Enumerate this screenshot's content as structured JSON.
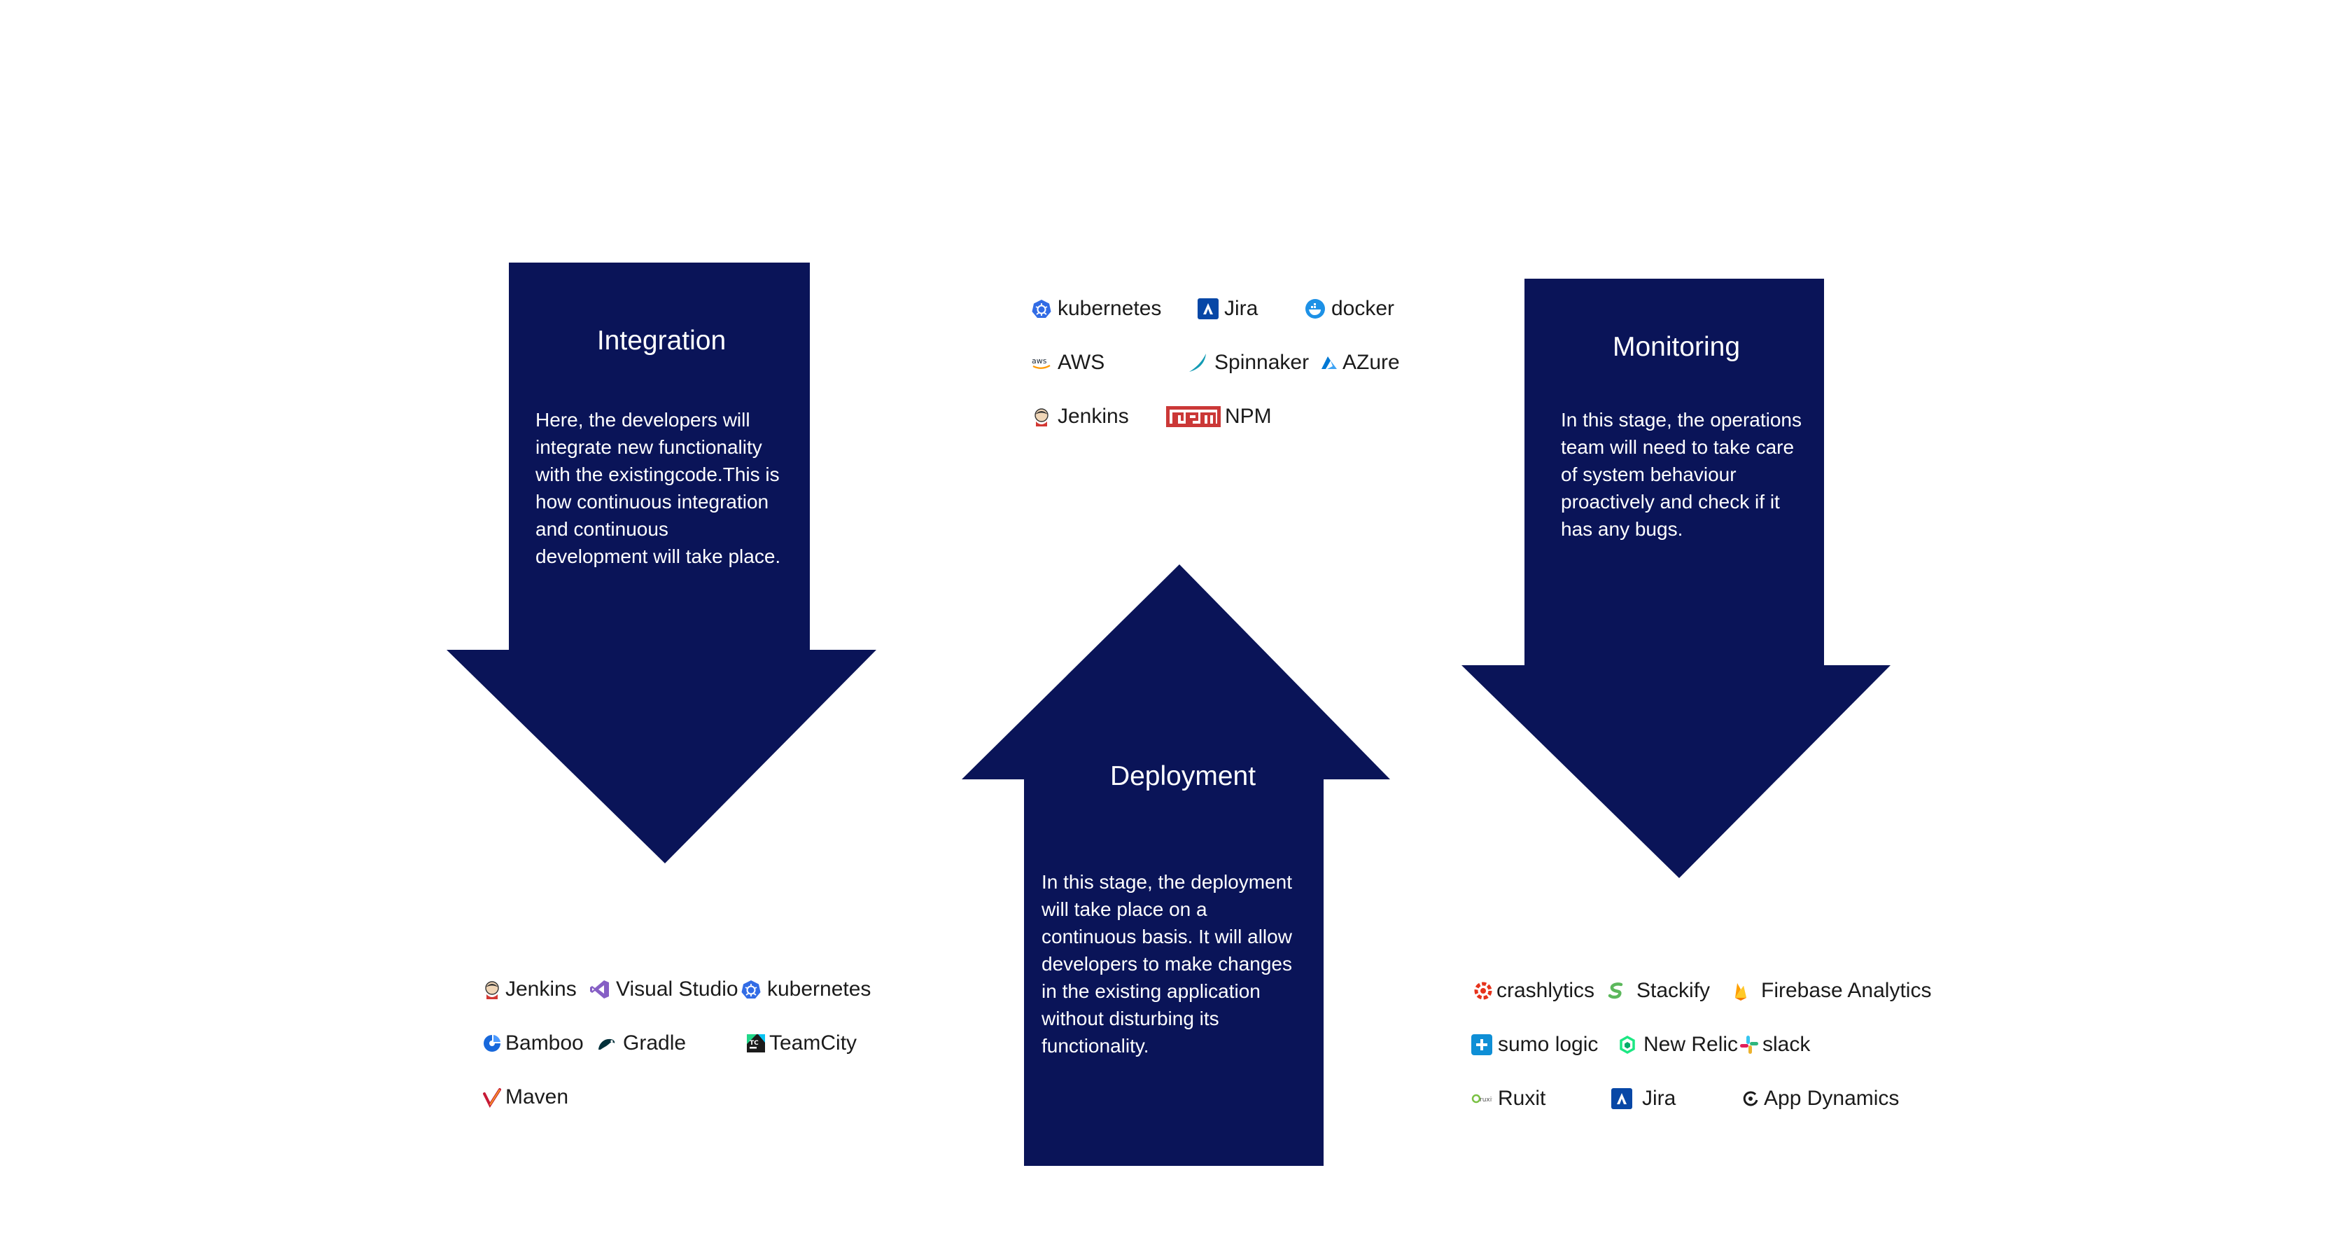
{
  "stages": {
    "integration": {
      "title": "Integration",
      "description": [
        "Here, the developers will",
        "integrate new functionality",
        "with the existingcode.This is",
        "how continuous integration",
        "and continuous",
        "development will take place."
      ],
      "tools": [
        {
          "label": "Jenkins",
          "icon": "jenkins-icon"
        },
        {
          "label": "Visual Studio",
          "icon": "visual-studio-icon"
        },
        {
          "label": "kubernetes",
          "icon": "kubernetes-icon"
        },
        {
          "label": "Bamboo",
          "icon": "bamboo-icon"
        },
        {
          "label": "Gradle",
          "icon": "gradle-icon"
        },
        {
          "label": "TeamCity",
          "icon": "teamcity-icon"
        },
        {
          "label": "Maven",
          "icon": "maven-icon"
        }
      ]
    },
    "deployment": {
      "title": "Deployment",
      "description": [
        "In this stage, the deployment",
        "will take place on a",
        "continuous basis. It will allow",
        "developers to make changes",
        "in the existing application",
        "without disturbing its",
        "functionality."
      ],
      "tools": [
        {
          "label": "kubernetes",
          "icon": "kubernetes-icon"
        },
        {
          "label": "Jira",
          "icon": "jira-icon"
        },
        {
          "label": "docker",
          "icon": "docker-icon"
        },
        {
          "label": "AWS",
          "icon": "aws-icon"
        },
        {
          "label": "Spinnaker",
          "icon": "spinnaker-icon"
        },
        {
          "label": "AZure",
          "icon": "azure-icon"
        },
        {
          "label": "Jenkins",
          "icon": "jenkins-icon"
        },
        {
          "label": "NPM",
          "icon": "npm-icon"
        }
      ]
    },
    "monitoring": {
      "title": "Monitoring",
      "description": [
        "In this stage, the operations",
        "team will need to take care",
        "of system behaviour",
        "proactively and check if it",
        "has any bugs."
      ],
      "tools": [
        {
          "label": "crashlytics",
          "icon": "crashlytics-icon"
        },
        {
          "label": "Stackify",
          "icon": "stackify-icon"
        },
        {
          "label": "Firebase Analytics",
          "icon": "firebase-icon"
        },
        {
          "label": "sumo logic",
          "icon": "sumo-logic-icon"
        },
        {
          "label": "New Relic",
          "icon": "new-relic-icon"
        },
        {
          "label": "slack",
          "icon": "slack-icon"
        },
        {
          "label": "Ruxit",
          "icon": "ruxit-icon"
        },
        {
          "label": "Jira",
          "icon": "jira-icon"
        },
        {
          "label": "App Dynamics",
          "icon": "app-dynamics-icon"
        }
      ]
    }
  },
  "colors": {
    "arrow": "#0a1458",
    "text_on_arrow": "#ffffff",
    "tool_text": "#1b1b1b"
  }
}
